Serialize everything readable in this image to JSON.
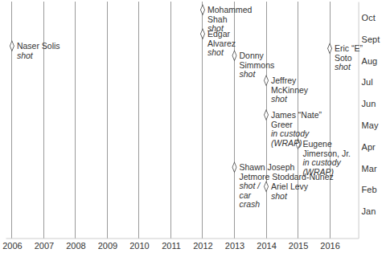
{
  "chart_data": {
    "type": "scatter",
    "x": [
      2006,
      2012,
      2012,
      2013,
      2013,
      2014,
      2014,
      2014,
      2015,
      2016
    ],
    "values": [
      8.69,
      10.37,
      9.25,
      8.24,
      3.05,
      7.08,
      5.48,
      2.15,
      4.13,
      8.57
    ],
    "annotations": [
      {
        "name": [
          "Naser Solis"
        ],
        "note": [
          "shot"
        ]
      },
      {
        "name": [
          "Mohammed",
          "Shah"
        ],
        "note": [
          "shot"
        ]
      },
      {
        "name": [
          "Edgar",
          "Alvarez"
        ],
        "note": [
          "shot"
        ]
      },
      {
        "name": [
          "Donny",
          "Simmons"
        ],
        "note": [
          "shot"
        ]
      },
      {
        "name": [
          "Shawn Joseph",
          "Jetmore Stoddard-Nunez"
        ],
        "note": [
          "shot /",
          "car",
          "crash"
        ]
      },
      {
        "name": [
          "Jeffrey",
          "McKinney"
        ],
        "note": [
          "shot"
        ]
      },
      {
        "name": [
          "James “Nate”",
          "Greer"
        ],
        "note": [
          "in custody",
          "(WRAP)"
        ]
      },
      {
        "name": [
          "Ariel Levy"
        ],
        "note": [
          "shot"
        ]
      },
      {
        "name": [
          "Eugene",
          "Jimerson, Jr."
        ],
        "note": [
          "in custody",
          "(WRAP)"
        ]
      },
      {
        "name": [
          "Eric “E”",
          "Soto"
        ],
        "note": [
          "shot"
        ]
      }
    ],
    "xlim": [
      2005.8,
      2016.9
    ],
    "xticks": [
      2006,
      2007,
      2008,
      2009,
      2010,
      2011,
      2012,
      2013,
      2014,
      2015,
      2016
    ],
    "ylim": [
      -0.25,
      10.75
    ],
    "yticks": [
      {
        "value": 1,
        "label": "Jan"
      },
      {
        "value": 2,
        "label": "Feb"
      },
      {
        "value": 3,
        "label": "Mar"
      },
      {
        "value": 4,
        "label": "Apr"
      },
      {
        "value": 5,
        "label": "May"
      },
      {
        "value": 6,
        "label": "Jun"
      },
      {
        "value": 7,
        "label": "Jul"
      },
      {
        "value": 8,
        "label": "Aug"
      },
      {
        "value": 9,
        "label": "Sept"
      },
      {
        "value": 10,
        "label": "Oct"
      }
    ],
    "grid": true,
    "marker": "diamond"
  }
}
